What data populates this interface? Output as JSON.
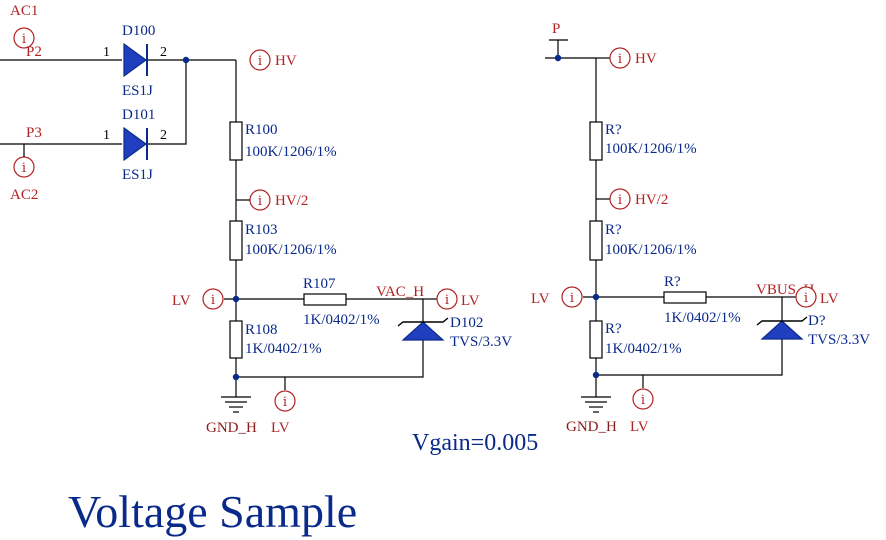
{
  "colors": {
    "wire": "#000000",
    "port": "#b22222",
    "designator": "#0a2a8a",
    "component_fill": "#1f3fbf",
    "ground_label": "#8b1a1a"
  },
  "left_circuit": {
    "ports": {
      "ac1": "AC1",
      "ac2": "AC2",
      "hv": "HV",
      "hv_half": "HV/2",
      "lv_in": "LV",
      "lv_out": "LV",
      "lv_gnd": "LV"
    },
    "connectors": {
      "p2": "P2",
      "p3": "P3"
    },
    "diodes": {
      "d100": {
        "ref": "D100",
        "value": "ES1J",
        "pin1": "1",
        "pin2": "2"
      },
      "d101": {
        "ref": "D101",
        "value": "ES1J",
        "pin1": "1",
        "pin2": "2"
      }
    },
    "resistors": {
      "r100": {
        "ref": "R100",
        "value": "100K/1206/1%"
      },
      "r103": {
        "ref": "R103",
        "value": "100K/1206/1%"
      },
      "r107": {
        "ref": "R107",
        "value": "1K/0402/1%"
      },
      "r108": {
        "ref": "R108",
        "value": "1K/0402/1%"
      }
    },
    "tvs": {
      "ref": "D102",
      "value": "TVS/3.3V"
    },
    "net_vac": "VAC_H",
    "ground": "GND_H"
  },
  "right_circuit": {
    "ports": {
      "hv": "HV",
      "hv_half": "HV/2",
      "lv_in": "LV",
      "lv_out": "LV",
      "lv_gnd": "LV"
    },
    "connector": "P",
    "resistors": {
      "r_top": {
        "ref": "R?",
        "value": "100K/1206/1%"
      },
      "r_mid": {
        "ref": "R?",
        "value": "100K/1206/1%"
      },
      "r_series": {
        "ref": "R?",
        "value": "1K/0402/1%"
      },
      "r_bottom": {
        "ref": "R?",
        "value": "1K/0402/1%"
      }
    },
    "tvs": {
      "ref": "D?",
      "value": "TVS/3.3V"
    },
    "net_vbus": "VBUS_H",
    "ground": "GND_H"
  },
  "port_glyph": "i",
  "vgain": "Vgain=0.005",
  "title": "Voltage Sample"
}
